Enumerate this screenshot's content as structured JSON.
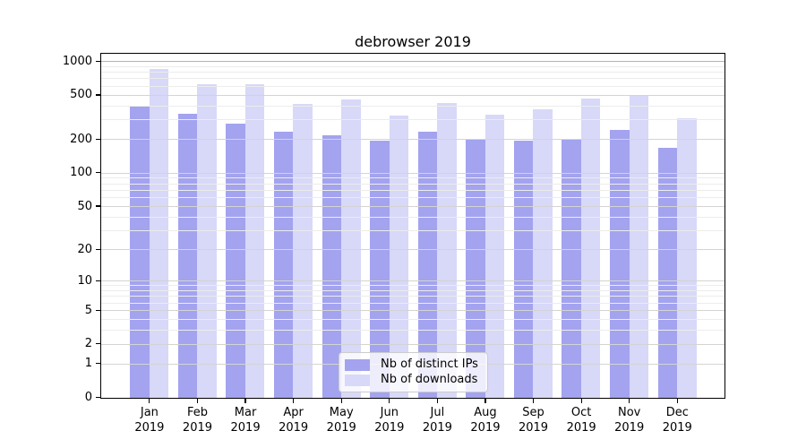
{
  "title": "debrowser 2019",
  "chart_data": {
    "type": "bar",
    "title": "debrowser 2019",
    "categories": [
      "Jan 2019",
      "Feb 2019",
      "Mar 2019",
      "Apr 2019",
      "May 2019",
      "Jun 2019",
      "Jul 2019",
      "Aug 2019",
      "Sep 2019",
      "Oct 2019",
      "Nov 2019",
      "Dec 2019"
    ],
    "series": [
      {
        "name": "Nb of distinct IPs",
        "color": "#a3a3ef",
        "values": [
          395,
          340,
          280,
          235,
          220,
          195,
          235,
          200,
          195,
          200,
          245,
          170
        ]
      },
      {
        "name": "Nb of downloads",
        "color": "#d8d8f8",
        "values": [
          860,
          630,
          620,
          415,
          460,
          330,
          425,
          335,
          370,
          470,
          500,
          310
        ]
      }
    ],
    "xlabel": "",
    "ylabel": "",
    "yscale": "log1p",
    "ylim": [
      0,
      1180
    ],
    "y_major_ticks": [
      1000,
      500,
      200,
      100,
      50,
      20,
      10,
      5,
      2,
      1,
      0
    ],
    "y_minor_gridlines": [
      900,
      800,
      700,
      600,
      400,
      300,
      90,
      80,
      70,
      60,
      40,
      30,
      9,
      8,
      7,
      6,
      4,
      3
    ],
    "grid": true,
    "legend_position": "lower center"
  },
  "legend": {
    "items": [
      "Nb of distinct IPs",
      "Nb of downloads"
    ]
  },
  "colors": {
    "bar_distinct_ips": "#a3a3ef",
    "bar_downloads": "#d8d8f8",
    "major_grid": "#d4d4d4",
    "minor_grid": "#ececec",
    "top_grid": "#b4b4b4",
    "axis": "#000000",
    "background": "#ffffff"
  }
}
